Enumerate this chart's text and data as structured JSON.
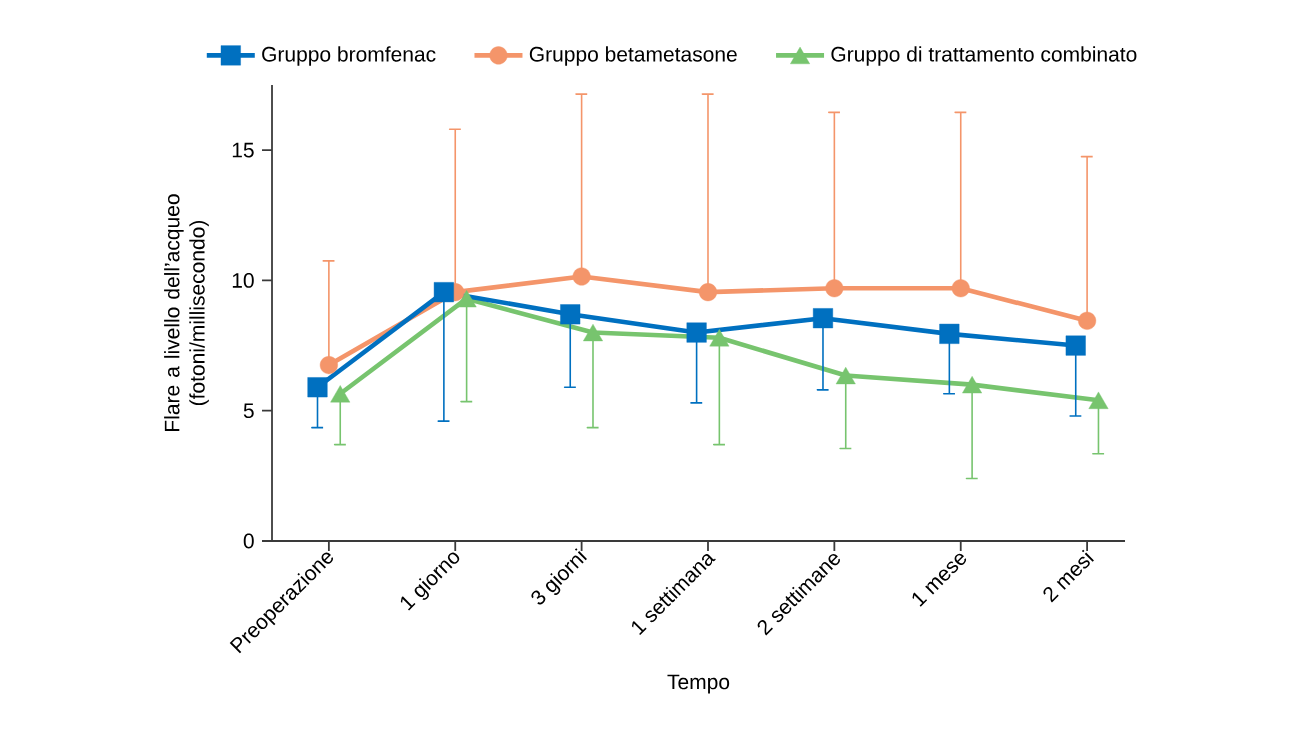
{
  "chart_data": {
    "type": "line",
    "xlabel": "Tempo",
    "ylabel": "Flare a livello dell’acqueo (fotoni/millisecondo)",
    "categories": [
      "Preoperazione",
      "1 giorno",
      "3 giorni",
      "1 settimana",
      "2 settimane",
      "1 mese",
      "2 mesi"
    ],
    "series": [
      {
        "name": "Gruppo bromfenac",
        "color": "#0070c0",
        "marker": "square",
        "values": [
          5.9,
          9.55,
          8.7,
          8.0,
          8.55,
          7.95,
          7.5
        ],
        "errors": [
          [
            4.35,
            5.9
          ],
          [
            4.6,
            9.55
          ],
          [
            5.9,
            8.7
          ],
          [
            5.3,
            8.0
          ],
          [
            5.8,
            8.55
          ],
          [
            5.65,
            7.95
          ],
          [
            4.8,
            7.5
          ]
        ]
      },
      {
        "name": "Gruppo betametasone",
        "color": "#f4956a",
        "marker": "circle",
        "values": [
          6.75,
          9.55,
          10.15,
          9.55,
          9.7,
          9.7,
          8.45
        ],
        "errors": [
          [
            6.75,
            10.75
          ],
          [
            9.55,
            15.8
          ],
          [
            10.15,
            17.15
          ],
          [
            9.55,
            17.15
          ],
          [
            9.7,
            16.45
          ],
          [
            9.7,
            16.45
          ],
          [
            8.45,
            14.75
          ]
        ]
      },
      {
        "name": "Gruppo di trattamento combinato",
        "color": "#77c46e",
        "marker": "triangle",
        "values": [
          5.65,
          9.3,
          8.0,
          7.8,
          6.35,
          6.0,
          5.4
        ],
        "errors": [
          [
            3.7,
            5.65
          ],
          [
            5.35,
            9.3
          ],
          [
            4.35,
            8.0
          ],
          [
            3.7,
            7.8
          ],
          [
            3.55,
            6.35
          ],
          [
            2.4,
            6.0
          ],
          [
            3.35,
            5.4
          ]
        ]
      }
    ],
    "ylim": [
      0,
      17.5
    ],
    "yticks": [
      0,
      5,
      10,
      15
    ],
    "legend": "top"
  }
}
